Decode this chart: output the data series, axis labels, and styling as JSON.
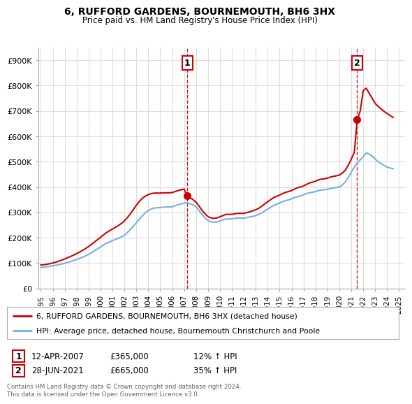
{
  "title": "6, RUFFORD GARDENS, BOURNEMOUTH, BH6 3HX",
  "subtitle": "Price paid vs. HM Land Registry's House Price Index (HPI)",
  "legend_line1": "6, RUFFORD GARDENS, BOURNEMOUTH, BH6 3HX (detached house)",
  "legend_line2": "HPI: Average price, detached house, Bournemouth Christchurch and Poole",
  "annotation1_date": "12-APR-2007",
  "annotation1_price": "£365,000",
  "annotation1_hpi": "12% ↑ HPI",
  "annotation2_date": "28-JUN-2021",
  "annotation2_price": "£665,000",
  "annotation2_hpi": "35% ↑ HPI",
  "footnote": "Contains HM Land Registry data © Crown copyright and database right 2024.\nThis data is licensed under the Open Government Licence v3.0.",
  "sale1_x": 2007.28,
  "sale1_y": 365000,
  "sale2_x": 2021.49,
  "sale2_y": 665000,
  "red_color": "#cc0000",
  "blue_color": "#7aade0",
  "ylim_min": 0,
  "ylim_max": 950000,
  "xlim_min": 1994.8,
  "xlim_max": 2025.5,
  "yticks": [
    0,
    100000,
    200000,
    300000,
    400000,
    500000,
    600000,
    700000,
    800000,
    900000
  ],
  "ytick_labels": [
    "£0",
    "£100K",
    "£200K",
    "£300K",
    "£400K",
    "£500K",
    "£600K",
    "£700K",
    "£800K",
    "£900K"
  ],
  "xticks": [
    1995,
    1996,
    1997,
    1998,
    1999,
    2000,
    2001,
    2002,
    2003,
    2004,
    2005,
    2006,
    2007,
    2008,
    2009,
    2010,
    2011,
    2012,
    2013,
    2014,
    2015,
    2016,
    2017,
    2018,
    2019,
    2020,
    2021,
    2022,
    2023,
    2024,
    2025
  ],
  "background_color": "#ffffff",
  "grid_color": "#dddddd",
  "hpi_x": [
    1995.0,
    1995.25,
    1995.5,
    1995.75,
    1996.0,
    1996.25,
    1996.5,
    1996.75,
    1997.0,
    1997.25,
    1997.5,
    1997.75,
    1998.0,
    1998.25,
    1998.5,
    1998.75,
    1999.0,
    1999.25,
    1999.5,
    1999.75,
    2000.0,
    2000.25,
    2000.5,
    2000.75,
    2001.0,
    2001.25,
    2001.5,
    2001.75,
    2002.0,
    2002.25,
    2002.5,
    2002.75,
    2003.0,
    2003.25,
    2003.5,
    2003.75,
    2004.0,
    2004.25,
    2004.5,
    2004.75,
    2005.0,
    2005.25,
    2005.5,
    2005.75,
    2006.0,
    2006.25,
    2006.5,
    2006.75,
    2007.0,
    2007.25,
    2007.5,
    2007.75,
    2008.0,
    2008.25,
    2008.5,
    2008.75,
    2009.0,
    2009.25,
    2009.5,
    2009.75,
    2010.0,
    2010.25,
    2010.5,
    2010.75,
    2011.0,
    2011.25,
    2011.5,
    2011.75,
    2012.0,
    2012.25,
    2012.5,
    2012.75,
    2013.0,
    2013.25,
    2013.5,
    2013.75,
    2014.0,
    2014.25,
    2014.5,
    2014.75,
    2015.0,
    2015.25,
    2015.5,
    2015.75,
    2016.0,
    2016.25,
    2016.5,
    2016.75,
    2017.0,
    2017.25,
    2017.5,
    2017.75,
    2018.0,
    2018.25,
    2018.5,
    2018.75,
    2019.0,
    2019.25,
    2019.5,
    2019.75,
    2020.0,
    2020.25,
    2020.5,
    2020.75,
    2021.0,
    2021.25,
    2021.5,
    2021.75,
    2022.0,
    2022.25,
    2022.5,
    2022.75,
    2023.0,
    2023.25,
    2023.5,
    2023.75,
    2024.0,
    2024.25,
    2024.5
  ],
  "hpi_y": [
    82000,
    83500,
    85000,
    87000,
    89000,
    91000,
    93500,
    96000,
    99000,
    102000,
    106000,
    110000,
    114000,
    118000,
    123000,
    128000,
    134000,
    141000,
    148000,
    156000,
    163000,
    171000,
    178000,
    183000,
    188000,
    193000,
    198000,
    203000,
    210000,
    220000,
    232000,
    245000,
    259000,
    273000,
    286000,
    298000,
    307000,
    313000,
    317000,
    318000,
    319000,
    320000,
    321000,
    321000,
    322000,
    326000,
    330000,
    333000,
    336000,
    338000,
    334000,
    329000,
    322000,
    308000,
    292000,
    278000,
    268000,
    263000,
    261000,
    262000,
    266000,
    270000,
    274000,
    274000,
    274000,
    276000,
    278000,
    277000,
    277000,
    279000,
    282000,
    284000,
    287000,
    292000,
    298000,
    305000,
    313000,
    320000,
    327000,
    332000,
    337000,
    342000,
    346000,
    349000,
    353000,
    358000,
    362000,
    365000,
    369000,
    374000,
    377000,
    379000,
    382000,
    386000,
    388000,
    389000,
    391000,
    394000,
    396000,
    398000,
    400000,
    408000,
    420000,
    438000,
    458000,
    478000,
    495000,
    507000,
    520000,
    535000,
    530000,
    522000,
    510000,
    500000,
    492000,
    485000,
    478000,
    475000,
    472000
  ],
  "red_x": [
    1995.0,
    1995.25,
    1995.5,
    1995.75,
    1996.0,
    1996.25,
    1996.5,
    1996.75,
    1997.0,
    1997.25,
    1997.5,
    1997.75,
    1998.0,
    1998.25,
    1998.5,
    1998.75,
    1999.0,
    1999.25,
    1999.5,
    1999.75,
    2000.0,
    2000.25,
    2000.5,
    2000.75,
    2001.0,
    2001.25,
    2001.5,
    2001.75,
    2002.0,
    2002.25,
    2002.5,
    2002.75,
    2003.0,
    2003.25,
    2003.5,
    2003.75,
    2004.0,
    2004.25,
    2004.5,
    2004.75,
    2005.0,
    2005.25,
    2005.5,
    2005.75,
    2006.0,
    2006.25,
    2006.5,
    2006.75,
    2007.0,
    2007.25,
    2007.5,
    2007.75,
    2008.0,
    2008.25,
    2008.5,
    2008.75,
    2009.0,
    2009.25,
    2009.5,
    2009.75,
    2010.0,
    2010.25,
    2010.5,
    2010.75,
    2011.0,
    2011.25,
    2011.5,
    2011.75,
    2012.0,
    2012.25,
    2012.5,
    2012.75,
    2013.0,
    2013.25,
    2013.5,
    2013.75,
    2014.0,
    2014.25,
    2014.5,
    2014.75,
    2015.0,
    2015.25,
    2015.5,
    2015.75,
    2016.0,
    2016.25,
    2016.5,
    2016.75,
    2017.0,
    2017.25,
    2017.5,
    2017.75,
    2018.0,
    2018.25,
    2018.5,
    2018.75,
    2019.0,
    2019.25,
    2019.5,
    2019.75,
    2020.0,
    2020.25,
    2020.5,
    2020.75,
    2021.0,
    2021.25,
    2021.5,
    2021.75,
    2022.0,
    2022.25,
    2022.5,
    2022.75,
    2023.0,
    2023.25,
    2023.5,
    2023.75,
    2024.0,
    2024.25,
    2024.5
  ],
  "red_y": [
    92000,
    93000,
    95000,
    97000,
    100000,
    103000,
    107000,
    111000,
    116000,
    121000,
    126000,
    131000,
    137000,
    143000,
    150000,
    157000,
    165000,
    174000,
    183000,
    192000,
    201000,
    211000,
    220000,
    227000,
    234000,
    241000,
    248000,
    256000,
    266000,
    279000,
    294000,
    311000,
    328000,
    343000,
    355000,
    364000,
    370000,
    374000,
    376000,
    376000,
    376000,
    377000,
    377000,
    377000,
    378000,
    382000,
    386000,
    389000,
    392000,
    365000,
    358000,
    350000,
    340000,
    325000,
    308000,
    294000,
    283000,
    278000,
    276000,
    278000,
    282000,
    287000,
    292000,
    292000,
    292000,
    294000,
    296000,
    296000,
    296000,
    299000,
    302000,
    306000,
    310000,
    316000,
    324000,
    333000,
    342000,
    350000,
    358000,
    363000,
    368000,
    374000,
    379000,
    382000,
    386000,
    392000,
    397000,
    400000,
    404000,
    410000,
    416000,
    419000,
    423000,
    428000,
    431000,
    432000,
    435000,
    439000,
    442000,
    444000,
    447000,
    455000,
    466000,
    486000,
    510000,
    536000,
    665000,
    700000,
    780000,
    790000,
    770000,
    750000,
    730000,
    718000,
    708000,
    698000,
    690000,
    682000,
    675000
  ],
  "vline1_x": 2007.28,
  "vline2_x": 2021.49
}
